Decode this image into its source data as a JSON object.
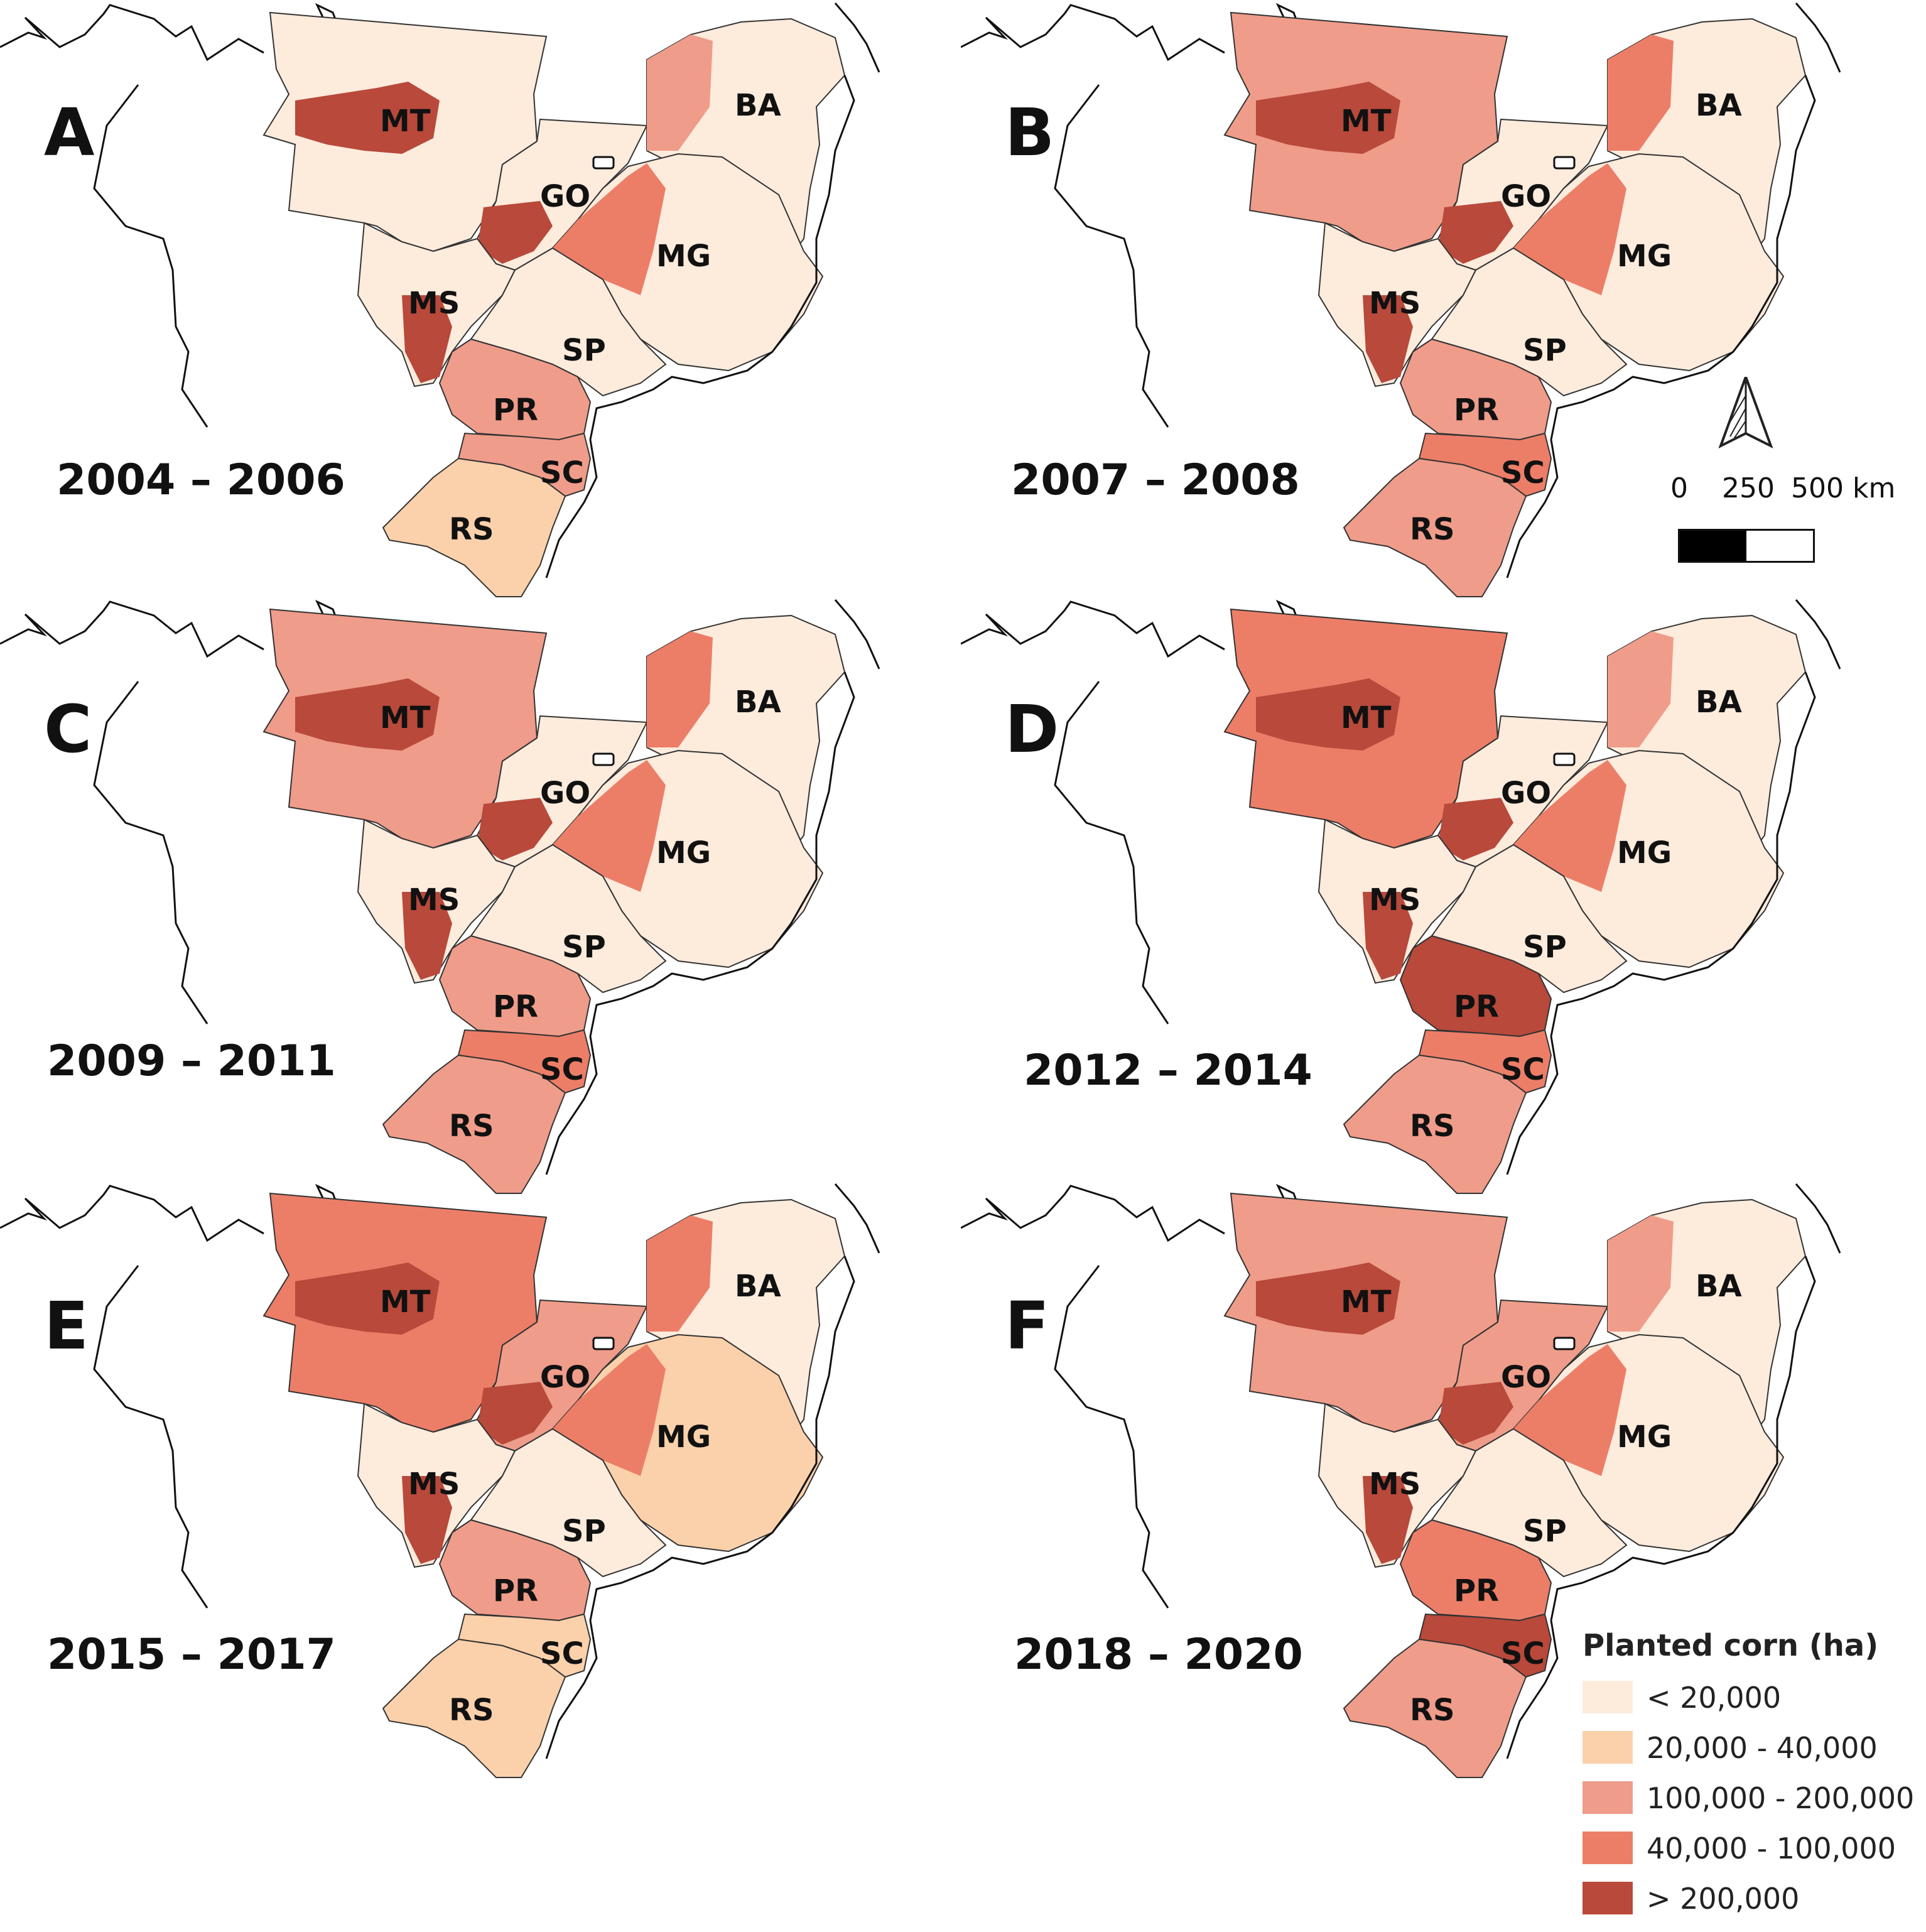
{
  "palette": {
    "c1": "#fdebdc",
    "c2": "#fbd1ab",
    "c3": "#ef9c8a",
    "c4": "#ec7e68",
    "c5": "#b8493b"
  },
  "state_labels": [
    "MT",
    "BA",
    "GO",
    "MG",
    "MS",
    "SP",
    "PR",
    "SC",
    "RS"
  ],
  "panels": [
    {
      "letter": "A",
      "period": "2004 – 2006",
      "classes": {
        "MT": "c1",
        "MT_core": "c5",
        "BA": "c1",
        "BA_west": "c3",
        "GO": "c1",
        "GO_sw": "c5",
        "MG": "c1",
        "MG_west": "c4",
        "MS": "c1",
        "MS_south": "c5",
        "SP": "c1",
        "PR": "c3",
        "SC": "c3",
        "RS": "c2"
      }
    },
    {
      "letter": "B",
      "period": "2007 – 2008",
      "classes": {
        "MT": "c3",
        "MT_core": "c5",
        "BA": "c1",
        "BA_west": "c4",
        "GO": "c1",
        "GO_sw": "c5",
        "MG": "c1",
        "MG_west": "c4",
        "MS": "c1",
        "MS_south": "c5",
        "SP": "c1",
        "PR": "c3",
        "SC": "c4",
        "RS": "c3"
      }
    },
    {
      "letter": "C",
      "period": "2009 – 2011",
      "classes": {
        "MT": "c3",
        "MT_core": "c5",
        "BA": "c1",
        "BA_west": "c4",
        "GO": "c1",
        "GO_sw": "c5",
        "MG": "c1",
        "MG_west": "c4",
        "MS": "c1",
        "MS_south": "c5",
        "SP": "c1",
        "PR": "c3",
        "SC": "c4",
        "RS": "c3"
      }
    },
    {
      "letter": "D",
      "period": "2012 – 2014",
      "classes": {
        "MT": "c4",
        "MT_core": "c5",
        "BA": "c1",
        "BA_west": "c3",
        "GO": "c1",
        "GO_sw": "c5",
        "MG": "c1",
        "MG_west": "c4",
        "MS": "c1",
        "MS_south": "c5",
        "SP": "c1",
        "PR": "c5",
        "SC": "c4",
        "RS": "c3"
      }
    },
    {
      "letter": "E",
      "period": "2015 – 2017",
      "classes": {
        "MT": "c4",
        "MT_core": "c5",
        "BA": "c1",
        "BA_west": "c4",
        "GO": "c3",
        "GO_sw": "c5",
        "MG": "c2",
        "MG_west": "c4",
        "MS": "c1",
        "MS_south": "c5",
        "SP": "c1",
        "PR": "c3",
        "SC": "c2",
        "RS": "c2"
      }
    },
    {
      "letter": "F",
      "period": "2018 – 2020",
      "classes": {
        "MT": "c3",
        "MT_core": "c5",
        "BA": "c1",
        "BA_west": "c3",
        "GO": "c3",
        "GO_sw": "c5",
        "MG": "c1",
        "MG_west": "c4",
        "MS": "c1",
        "MS_south": "c5",
        "SP": "c1",
        "PR": "c4",
        "SC": "c5",
        "RS": "c3"
      }
    }
  ],
  "north_arrow": "north-arrow-icon",
  "scale": {
    "zero": "0",
    "mid": "250",
    "end": "500 km"
  },
  "legend": {
    "title": "Planted corn (ha)",
    "items": [
      {
        "label": "< 20,000",
        "color": "#fdebdc"
      },
      {
        "label": "20,000 - 40,000",
        "color": "#fbd1ab"
      },
      {
        "label": "100,000 - 200,000",
        "color": "#ef9c8a"
      },
      {
        "label": "40,000 - 100,000",
        "color": "#ec7e68"
      },
      {
        "label": "> 200,000",
        "color": "#b8493b"
      }
    ]
  }
}
